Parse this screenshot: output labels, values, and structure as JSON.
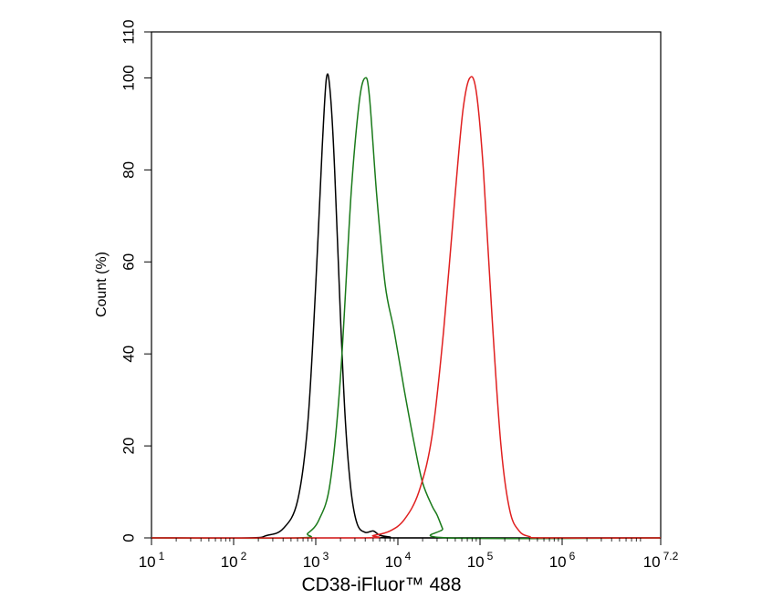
{
  "chart_data": {
    "type": "line",
    "title": "",
    "xlabel": "CD38-iFluor™ 488",
    "ylabel": "Count  (%)",
    "xscale": "log",
    "xlim": [
      10,
      15848932
    ],
    "ylim": [
      0,
      110
    ],
    "grid": false,
    "legend": "none",
    "x_ticks": [
      {
        "value": 10,
        "base": "10",
        "exp": "1"
      },
      {
        "value": 100,
        "base": "10",
        "exp": "2"
      },
      {
        "value": 1000,
        "base": "10",
        "exp": "3"
      },
      {
        "value": 10000,
        "base": "10",
        "exp": "4"
      },
      {
        "value": 100000,
        "base": "10",
        "exp": "5"
      },
      {
        "value": 1000000,
        "base": "10",
        "exp": "6"
      },
      {
        "value": 15848932,
        "base": "10",
        "exp": "7.2"
      }
    ],
    "y_ticks": [
      0,
      20,
      40,
      60,
      80,
      100,
      110
    ],
    "series": [
      {
        "color": "#000000",
        "points": [
          [
            10,
            0
          ],
          [
            150,
            0
          ],
          [
            250,
            0.5
          ],
          [
            400,
            2
          ],
          [
            600,
            8
          ],
          [
            800,
            25
          ],
          [
            1000,
            55
          ],
          [
            1200,
            85
          ],
          [
            1350,
            100
          ],
          [
            1500,
            97
          ],
          [
            1700,
            80
          ],
          [
            2000,
            48
          ],
          [
            2300,
            25
          ],
          [
            2700,
            10
          ],
          [
            3200,
            3
          ],
          [
            4000,
            1.2
          ],
          [
            5000,
            1.5
          ],
          [
            6000,
            0.6
          ],
          [
            8000,
            0.2
          ],
          [
            12000,
            0
          ],
          [
            15848932,
            0
          ]
        ]
      },
      {
        "color": "#1a7a1a",
        "points": [
          [
            10,
            0
          ],
          [
            600,
            0
          ],
          [
            800,
            1
          ],
          [
            1100,
            4
          ],
          [
            1500,
            12
          ],
          [
            2000,
            35
          ],
          [
            2700,
            75
          ],
          [
            3400,
            95
          ],
          [
            4000,
            100
          ],
          [
            4500,
            96
          ],
          [
            5500,
            75
          ],
          [
            7000,
            55
          ],
          [
            9000,
            45
          ],
          [
            12000,
            32
          ],
          [
            16000,
            20
          ],
          [
            20000,
            12
          ],
          [
            26000,
            7
          ],
          [
            30000,
            5
          ],
          [
            35000,
            2
          ],
          [
            40000,
            0
          ],
          [
            15848932,
            0
          ]
        ]
      },
      {
        "color": "#e02020",
        "points": [
          [
            10,
            0
          ],
          [
            3500,
            0
          ],
          [
            5000,
            0.5
          ],
          [
            8000,
            1.5
          ],
          [
            12000,
            4
          ],
          [
            18000,
            10
          ],
          [
            26000,
            22
          ],
          [
            36000,
            45
          ],
          [
            50000,
            75
          ],
          [
            62000,
            93
          ],
          [
            75000,
            100
          ],
          [
            90000,
            97
          ],
          [
            110000,
            80
          ],
          [
            140000,
            48
          ],
          [
            180000,
            20
          ],
          [
            230000,
            6
          ],
          [
            300000,
            1.5
          ],
          [
            400000,
            0.3
          ],
          [
            600000,
            0
          ],
          [
            15848932,
            0
          ]
        ]
      }
    ]
  }
}
